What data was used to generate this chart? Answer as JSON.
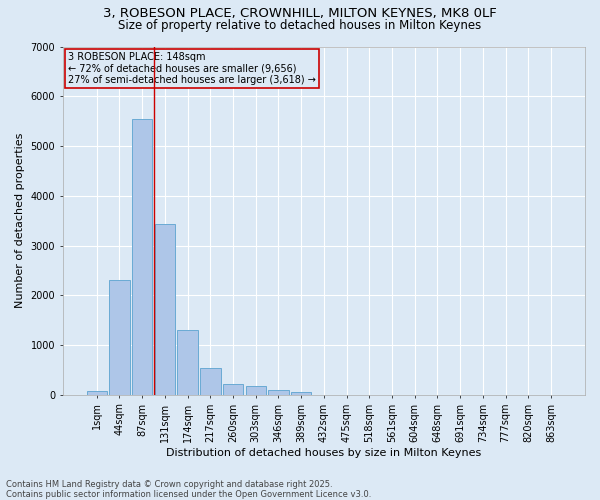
{
  "title_line1": "3, ROBESON PLACE, CROWNHILL, MILTON KEYNES, MK8 0LF",
  "title_line2": "Size of property relative to detached houses in Milton Keynes",
  "xlabel": "Distribution of detached houses by size in Milton Keynes",
  "ylabel": "Number of detached properties",
  "categories": [
    "1sqm",
    "44sqm",
    "87sqm",
    "131sqm",
    "174sqm",
    "217sqm",
    "260sqm",
    "303sqm",
    "346sqm",
    "389sqm",
    "432sqm",
    "475sqm",
    "518sqm",
    "561sqm",
    "604sqm",
    "648sqm",
    "691sqm",
    "734sqm",
    "777sqm",
    "820sqm",
    "863sqm"
  ],
  "values": [
    80,
    2300,
    5550,
    3430,
    1310,
    530,
    210,
    170,
    95,
    55,
    0,
    0,
    0,
    0,
    0,
    0,
    0,
    0,
    0,
    0,
    0
  ],
  "bar_color": "#aec6e8",
  "bar_edge_color": "#6aaad4",
  "vline_color": "#cc0000",
  "vline_x_index": 2.5,
  "annotation_text": "3 ROBESON PLACE: 148sqm\n← 72% of detached houses are smaller (9,656)\n27% of semi-detached houses are larger (3,618) →",
  "annotation_box_color": "#cc0000",
  "ylim": [
    0,
    7000
  ],
  "yticks": [
    0,
    1000,
    2000,
    3000,
    4000,
    5000,
    6000,
    7000
  ],
  "background_color": "#dce9f5",
  "grid_color": "#ffffff",
  "footer_line1": "Contains HM Land Registry data © Crown copyright and database right 2025.",
  "footer_line2": "Contains public sector information licensed under the Open Government Licence v3.0.",
  "title_fontsize": 9.5,
  "subtitle_fontsize": 8.5,
  "axis_label_fontsize": 8,
  "tick_fontsize": 7,
  "annotation_fontsize": 7,
  "footer_fontsize": 6
}
